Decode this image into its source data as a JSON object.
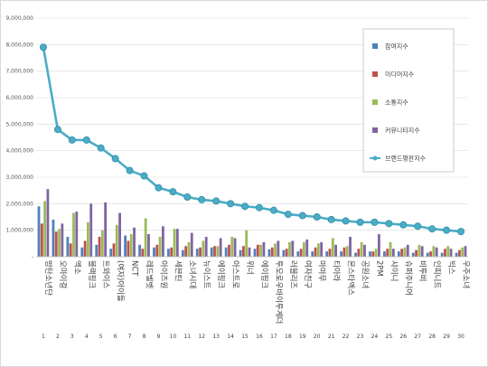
{
  "chart_data": {
    "type": "bar",
    "ylim": [
      0,
      9000000
    ],
    "yticks": [
      "-",
      "1,000,000",
      "2,000,000",
      "3,000,000",
      "4,000,000",
      "5,000,000",
      "6,000,000",
      "7,000,000",
      "8,000,000",
      "9,000,000"
    ],
    "grid": true,
    "legend_position": "right",
    "x": [
      "1",
      "2",
      "3",
      "4",
      "5",
      "6",
      "7",
      "8",
      "9",
      "10",
      "11",
      "12",
      "13",
      "14",
      "15",
      "16",
      "17",
      "18",
      "19",
      "20",
      "21",
      "22",
      "23",
      "24",
      "25",
      "26",
      "27",
      "28",
      "29",
      "30"
    ],
    "categories": [
      "방탄소년단",
      "오마이걸",
      "엑소",
      "블랙핑크",
      "트와이스",
      "(여자)아이들",
      "NCT",
      "레드벨벳",
      "아이즈원",
      "세븐틴",
      "소녀시대",
      "뉴이스트",
      "에이핑크",
      "아스트로",
      "위너",
      "에이핑크",
      "투모로우바이투게더",
      "러블리즈",
      "여자친구",
      "마마무",
      "티아라",
      "몬스타엑스",
      "공원소녀",
      "2PM",
      "샤이니",
      "슈퍼주니어",
      "비투비",
      "인피니트",
      "빅스",
      "우주소녀"
    ],
    "series": [
      {
        "name": "참여지수",
        "type": "bar",
        "color": "#4f81bd",
        "values": [
          1900000,
          1400000,
          750000,
          350000,
          450000,
          300000,
          800000,
          450000,
          350000,
          300000,
          250000,
          300000,
          350000,
          350000,
          250000,
          300000,
          280000,
          250000,
          200000,
          200000,
          200000,
          200000,
          150000,
          200000,
          200000,
          200000,
          150000,
          150000,
          150000,
          150000
        ]
      },
      {
        "name": "미디어지수",
        "type": "bar",
        "color": "#c0504d",
        "values": [
          1250000,
          950000,
          500000,
          600000,
          750000,
          500000,
          600000,
          300000,
          450000,
          350000,
          400000,
          350000,
          400000,
          450000,
          400000,
          450000,
          350000,
          300000,
          300000,
          350000,
          300000,
          350000,
          300000,
          200000,
          300000,
          300000,
          250000,
          200000,
          300000,
          250000
        ]
      },
      {
        "name": "소통지수",
        "type": "bar",
        "color": "#9bbb59",
        "values": [
          2100000,
          1050000,
          1650000,
          1300000,
          1000000,
          1200000,
          850000,
          1450000,
          750000,
          1050000,
          550000,
          600000,
          400000,
          750000,
          1000000,
          450000,
          500000,
          550000,
          550000,
          500000,
          700000,
          400000,
          550000,
          300000,
          550000,
          350000,
          450000,
          400000,
          400000,
          350000
        ]
      },
      {
        "name": "커뮤니티지수",
        "type": "bar",
        "color": "#8064a2",
        "values": [
          2550000,
          1250000,
          1700000,
          2000000,
          2050000,
          1650000,
          1100000,
          850000,
          1150000,
          1050000,
          900000,
          750000,
          700000,
          700000,
          350000,
          550000,
          600000,
          600000,
          650000,
          550000,
          450000,
          750000,
          450000,
          850000,
          300000,
          450000,
          400000,
          350000,
          300000,
          400000
        ]
      },
      {
        "name": "브랜드평판지수",
        "type": "line",
        "color": "#4bacc6",
        "values": [
          7900000,
          4800000,
          4400000,
          4400000,
          4100000,
          3700000,
          3250000,
          3050000,
          2600000,
          2450000,
          2250000,
          2150000,
          2100000,
          2000000,
          1900000,
          1850000,
          1750000,
          1600000,
          1550000,
          1500000,
          1400000,
          1350000,
          1300000,
          1300000,
          1250000,
          1200000,
          1150000,
          1050000,
          1000000,
          950000
        ]
      }
    ]
  }
}
